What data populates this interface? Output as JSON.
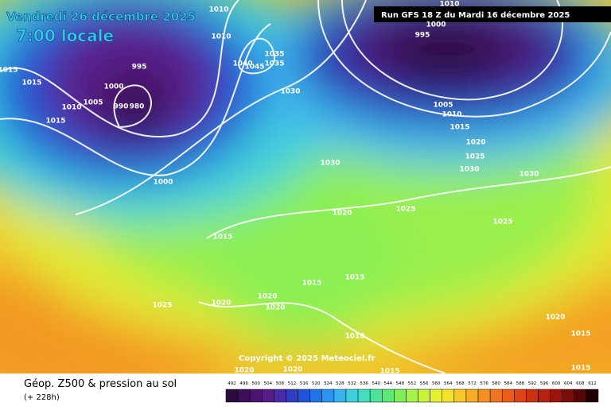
{
  "header": {
    "date": "Vendredi 26 décembre 2025",
    "time": "7:00 locale",
    "run": "Run GFS 18 Z du Mardi 16 décembre 2025"
  },
  "copyright": "Copyright © 2025 Meteociel.fr",
  "footer": {
    "title": "Géop. Z500 & pression au sol",
    "lead": "(+ 228h)"
  },
  "isobar_labels": [
    "1010",
    "1010",
    "1035",
    "1035",
    "1045",
    "1040",
    "995",
    "1000",
    "1005",
    "1010",
    "1015",
    "1015",
    "990",
    "980",
    "1030",
    "1000",
    "1015",
    "1030",
    "1020",
    "1025",
    "1025",
    "1030",
    "1030",
    "1025",
    "1020",
    "1015",
    "1010",
    "1005",
    "995",
    "1000",
    "1010",
    "1015",
    "1015",
    "1020",
    "1020",
    "1020",
    "1025",
    "1010",
    "1020",
    "1020",
    "1015",
    "1020",
    "1015",
    "1015",
    "1015"
  ],
  "scale": {
    "labels": [
      492,
      496,
      500,
      504,
      508,
      512,
      516,
      520,
      524,
      528,
      532,
      536,
      540,
      544,
      548,
      552,
      556,
      560,
      564,
      568,
      572,
      576,
      580,
      584,
      588,
      592,
      596,
      600,
      604,
      608,
      612
    ],
    "colors": [
      "#2b0a3d",
      "#3d0f5a",
      "#4b1470",
      "#5a1a88",
      "#4a2aa8",
      "#2f3ec0",
      "#1f55d8",
      "#1f74e8",
      "#2a95f0",
      "#35b5ef",
      "#3fcfe0",
      "#45dcc0",
      "#4fe39a",
      "#5fe878",
      "#7fee5a",
      "#a5f24a",
      "#c8f23c",
      "#e6f030",
      "#f5e22a",
      "#f8c828",
      "#f8ac24",
      "#f59020",
      "#f0761c",
      "#ea5c18",
      "#e04414",
      "#d03012",
      "#b82010",
      "#9a140c",
      "#7a0c0a",
      "#560606",
      "#200202"
    ]
  }
}
